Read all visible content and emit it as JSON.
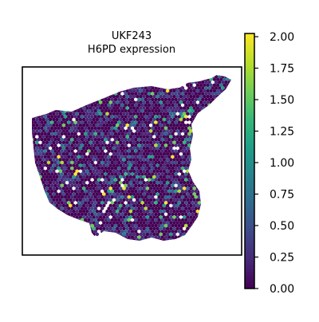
{
  "chart_data": {
    "type": "scatter",
    "title_line1": "UKF243",
    "title_line2": "H6PD expression",
    "xlabel": "",
    "ylabel": "",
    "grid": false,
    "colorbar": {
      "min": 0.0,
      "max": 2.0,
      "colormap": "viridis",
      "ticks": [
        "0.00",
        "0.25",
        "0.50",
        "0.75",
        "1.00",
        "1.25",
        "1.50",
        "1.75",
        "2.00"
      ]
    },
    "colors": [
      "#440154",
      "#482878",
      "#3e4989",
      "#31688e",
      "#26828e",
      "#1f9e89",
      "#35b779",
      "#6ece58",
      "#b5de2b",
      "#fde725"
    ]
  }
}
